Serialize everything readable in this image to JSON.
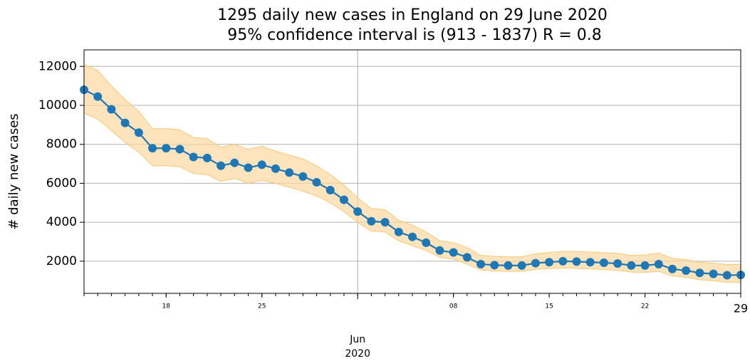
{
  "chart_data": {
    "type": "line",
    "title": "1295 daily new cases in England on 29 June 2020",
    "subtitle": "95% confidence interval is (913 - 1837) R = 0.8",
    "y_label": "# daily new cases",
    "x": [
      "2020-05-12",
      "2020-05-13",
      "2020-05-14",
      "2020-05-15",
      "2020-05-16",
      "2020-05-17",
      "2020-05-18",
      "2020-05-19",
      "2020-05-20",
      "2020-05-21",
      "2020-05-22",
      "2020-05-23",
      "2020-05-24",
      "2020-05-25",
      "2020-05-26",
      "2020-05-27",
      "2020-05-28",
      "2020-05-29",
      "2020-05-30",
      "2020-05-31",
      "2020-06-01",
      "2020-06-02",
      "2020-06-03",
      "2020-06-04",
      "2020-06-05",
      "2020-06-06",
      "2020-06-07",
      "2020-06-08",
      "2020-06-09",
      "2020-06-10",
      "2020-06-11",
      "2020-06-12",
      "2020-06-13",
      "2020-06-14",
      "2020-06-15",
      "2020-06-16",
      "2020-06-17",
      "2020-06-18",
      "2020-06-19",
      "2020-06-20",
      "2020-06-21",
      "2020-06-22",
      "2020-06-23",
      "2020-06-24",
      "2020-06-25",
      "2020-06-26",
      "2020-06-27",
      "2020-06-28",
      "2020-06-29"
    ],
    "values": [
      10800,
      10450,
      9800,
      9100,
      8600,
      7800,
      7800,
      7750,
      7350,
      7300,
      6900,
      7050,
      6800,
      6950,
      6750,
      6550,
      6350,
      6050,
      5650,
      5150,
      4550,
      4050,
      4000,
      3500,
      3250,
      2950,
      2550,
      2450,
      2200,
      1850,
      1800,
      1780,
      1780,
      1900,
      1950,
      2000,
      1980,
      1950,
      1920,
      1880,
      1780,
      1780,
      1850,
      1600,
      1520,
      1400,
      1350,
      1280,
      1295
    ],
    "lower": [
      9600,
      9300,
      8700,
      8100,
      7600,
      6900,
      6900,
      6850,
      6500,
      6450,
      6100,
      6250,
      6000,
      6150,
      6000,
      5800,
      5600,
      5350,
      5000,
      4550,
      4000,
      3550,
      3500,
      3050,
      2800,
      2550,
      2200,
      2100,
      1850,
      1550,
      1500,
      1480,
      1480,
      1580,
      1620,
      1650,
      1630,
      1600,
      1570,
      1530,
      1440,
      1430,
      1480,
      1250,
      1170,
      1050,
      1000,
      920,
      913
    ],
    "upper": [
      12100,
      11800,
      11000,
      10300,
      9700,
      8800,
      8800,
      8750,
      8350,
      8300,
      7850,
      8000,
      7750,
      7900,
      7650,
      7450,
      7250,
      6900,
      6450,
      5900,
      5250,
      4700,
      4650,
      4100,
      3850,
      3500,
      3050,
      2950,
      2700,
      2300,
      2250,
      2230,
      2230,
      2380,
      2450,
      2500,
      2500,
      2470,
      2440,
      2400,
      2300,
      2320,
      2420,
      2150,
      2080,
      1950,
      1900,
      1830,
      1837
    ],
    "color": "#1f77b4",
    "band_color": "#fdd9a0",
    "xlim": [
      "2020-05-12",
      "2020-06-29"
    ],
    "xticks": [
      {
        "value": "2020-05-18",
        "label": "18"
      },
      {
        "value": "2020-05-25",
        "label": "25"
      },
      {
        "value": "2020-06-01",
        "label": "Jun 2020"
      },
      {
        "value": "2020-06-08",
        "label": "08"
      },
      {
        "value": "2020-06-15",
        "label": "15"
      },
      {
        "value": "2020-06-22",
        "label": "22"
      },
      {
        "value": "2020-06-29",
        "label": "29"
      }
    ],
    "ylim": [
      350,
      12850
    ],
    "yticks": [
      2000,
      4000,
      6000,
      8000,
      10000,
      12000
    ],
    "grid": true
  }
}
